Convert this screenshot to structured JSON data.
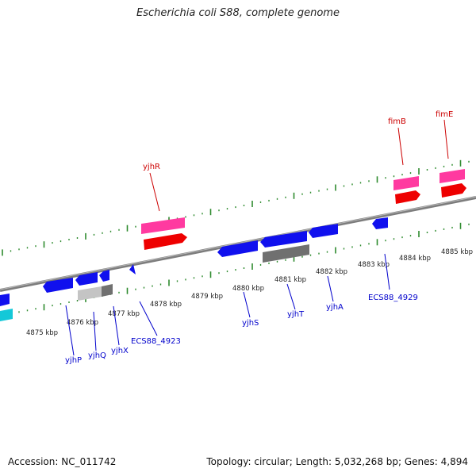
{
  "title": "Escherichia coli S88, complete genome",
  "footer": {
    "accession": "Accession: NC_011742",
    "summary": "Topology: circular; Length: 5,032,268 bp; Genes: 4,894"
  },
  "colors": {
    "backbone": "#8a8a8a",
    "ticks": "#2e8b2e",
    "forward_gene": "#ff1a1a",
    "forward_cds": "#ff3aa0",
    "reverse_gene": "#1010ee",
    "pseudo": "#707070",
    "other": "#14c8d8",
    "label_forward": "#cc0000",
    "label_reverse": "#0000cc"
  },
  "kbp_labels": [
    "4875 kbp",
    "4876 kbp",
    "4877 kbp",
    "4878 kbp",
    "4879 kbp",
    "4880 kbp",
    "4881 kbp",
    "4882 kbp",
    "4883 kbp",
    "4884 kbp",
    "4885 kbp"
  ],
  "genes_forward": [
    {
      "name": "yjhR"
    },
    {
      "name": "fimB"
    },
    {
      "name": "fimE"
    }
  ],
  "genes_reverse": [
    {
      "name": "yjhP"
    },
    {
      "name": "yjhQ"
    },
    {
      "name": "yjhX"
    },
    {
      "name": "ECS88_4923"
    },
    {
      "name": "yjhS"
    },
    {
      "name": "yjhT"
    },
    {
      "name": "yjhA"
    },
    {
      "name": "ECS88_4929"
    }
  ]
}
